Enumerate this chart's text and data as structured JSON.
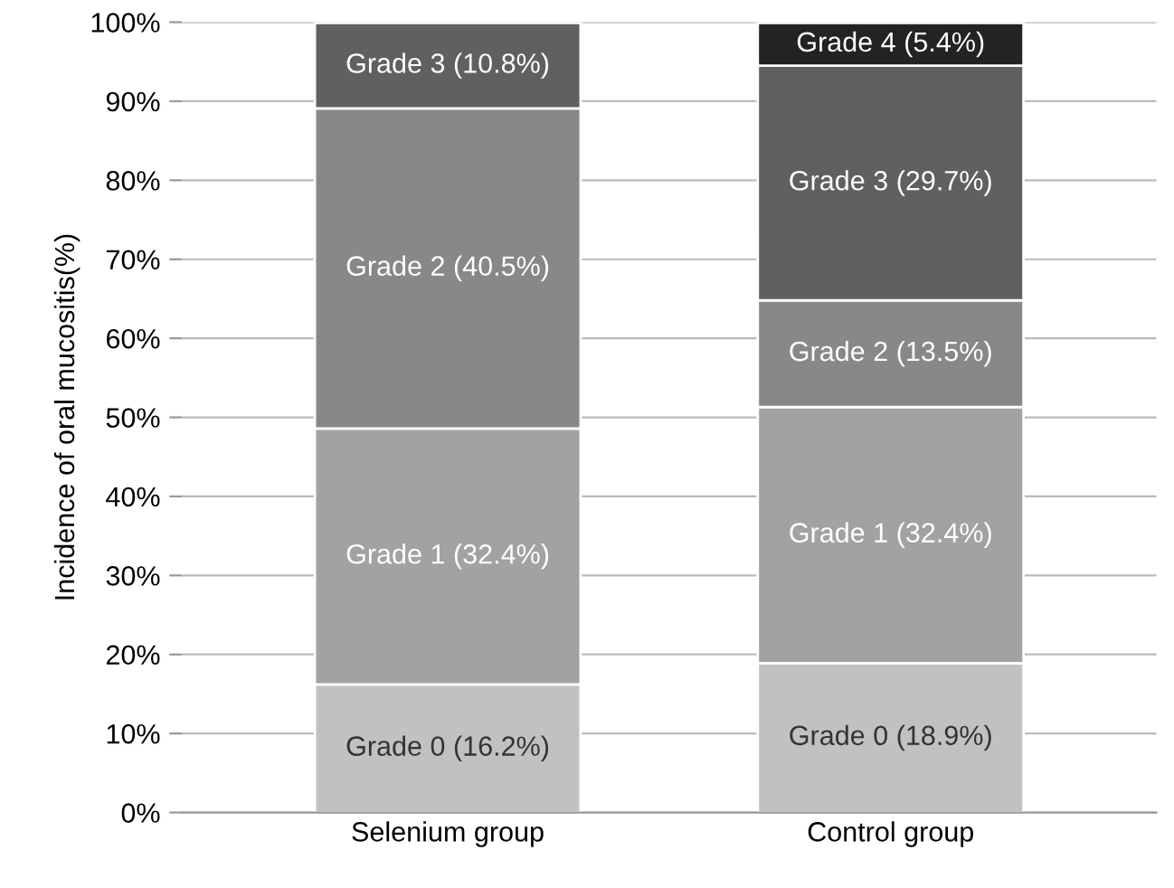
{
  "chart_data": {
    "type": "bar",
    "stacked": true,
    "ylabel": "Incidence of oral mucositis(%)",
    "categories": [
      "Selenium group",
      "Control group"
    ],
    "series": [
      {
        "color": "#c1c1c1",
        "values": [
          16.2,
          18.9
        ],
        "value_labels": [
          "Grade 0 (16.2%)",
          "Grade 0 (18.9%)"
        ]
      },
      {
        "color": "#a2a2a2",
        "values": [
          32.4,
          32.4
        ],
        "value_labels": [
          "Grade 1 (32.4%)",
          "Grade 1 (32.4%)"
        ]
      },
      {
        "color": "#888888",
        "values": [
          40.5,
          13.5
        ],
        "value_labels": [
          "Grade 2 (40.5%)",
          "Grade 2 (13.5%)"
        ]
      },
      {
        "color": "#606060",
        "values": [
          10.8,
          29.7
        ],
        "value_labels": [
          "Grade 3 (10.8%)",
          "Grade 3 (29.7%)"
        ]
      },
      {
        "color": "#232323",
        "values": [
          null,
          5.4
        ],
        "value_labels": [
          null,
          "Grade 4 (5.4%)"
        ]
      }
    ],
    "ylim": [
      0,
      100
    ],
    "yticks": [
      {
        "value": 0,
        "label": "0%"
      },
      {
        "value": 10,
        "label": "10%"
      },
      {
        "value": 20,
        "label": "20%"
      },
      {
        "value": 30,
        "label": "30%"
      },
      {
        "value": 40,
        "label": "40%"
      },
      {
        "value": 50,
        "label": "50%"
      },
      {
        "value": 60,
        "label": "60%"
      },
      {
        "value": 70,
        "label": "70%"
      },
      {
        "value": 80,
        "label": "80%"
      },
      {
        "value": 90,
        "label": "90%"
      },
      {
        "value": 100,
        "label": "100%"
      }
    ],
    "grid": "y"
  }
}
